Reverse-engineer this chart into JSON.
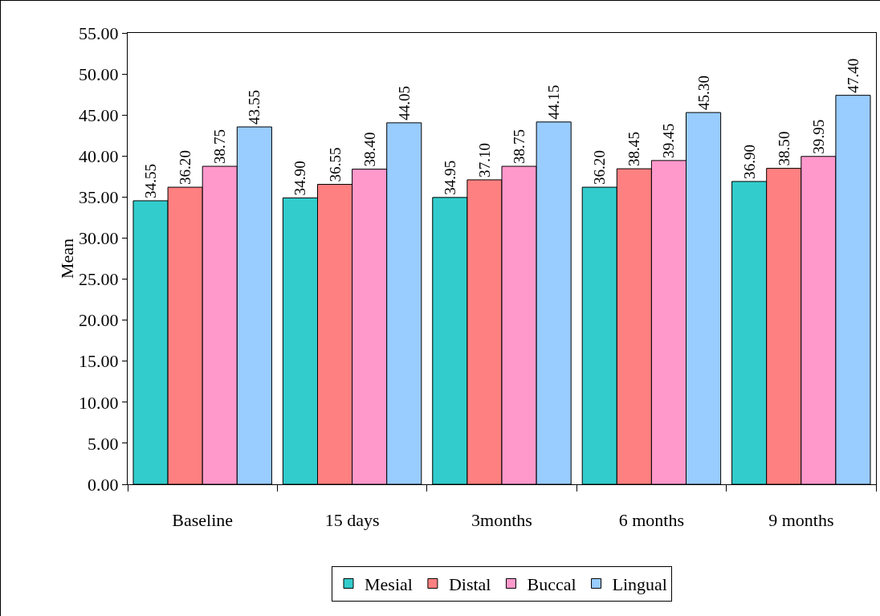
{
  "chart_data": {
    "type": "bar",
    "ylabel": "Mean",
    "categories": [
      "Baseline",
      "15 days",
      "3months",
      "6 months",
      "9 months"
    ],
    "series": [
      {
        "name": "Mesial",
        "color": "#33cccc",
        "values": [
          34.55,
          34.9,
          34.95,
          36.2,
          36.9
        ],
        "value_labels": [
          "34.55",
          "34.90",
          "34.95",
          "36.20",
          "36.90"
        ]
      },
      {
        "name": "Distal",
        "color": "#ff8080",
        "values": [
          36.2,
          36.55,
          37.1,
          38.45,
          38.5
        ],
        "value_labels": [
          "36.20",
          "36.55",
          "37.10",
          "38.45",
          "38.50"
        ]
      },
      {
        "name": "Buccal",
        "color": "#ff99cc",
        "values": [
          38.75,
          38.4,
          38.75,
          39.45,
          39.95
        ],
        "value_labels": [
          "38.75",
          "38.40",
          "38.75",
          "39.45",
          "39.95"
        ]
      },
      {
        "name": "Lingual",
        "color": "#99ccff",
        "values": [
          43.55,
          44.05,
          44.15,
          45.3,
          47.4
        ],
        "value_labels": [
          "43.55",
          "44.05",
          "44.15",
          "45.30",
          "47.40"
        ]
      }
    ],
    "ylim": [
      0,
      55
    ],
    "yticks": [
      {
        "value": 0,
        "label": "0.00"
      },
      {
        "value": 5,
        "label": "5.00"
      },
      {
        "value": 10,
        "label": "10.00"
      },
      {
        "value": 15,
        "label": "15.00"
      },
      {
        "value": 20,
        "label": "20.00"
      },
      {
        "value": 25,
        "label": "25.00"
      },
      {
        "value": 30,
        "label": "30.00"
      },
      {
        "value": 35,
        "label": "35.00"
      },
      {
        "value": 40,
        "label": "40.00"
      },
      {
        "value": 45,
        "label": "45.00"
      },
      {
        "value": 50,
        "label": "50.00"
      },
      {
        "value": 55,
        "label": "55.00"
      }
    ],
    "grid": false,
    "legend": "bottom"
  }
}
